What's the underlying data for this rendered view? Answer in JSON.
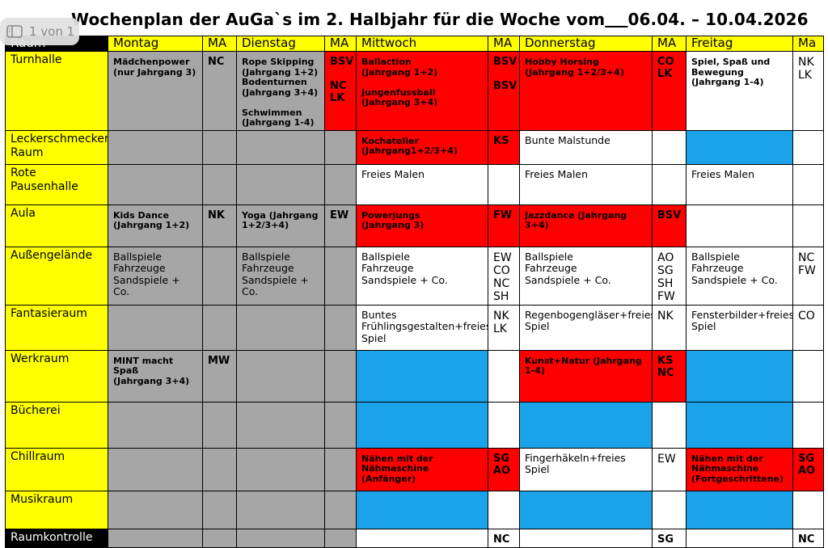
{
  "page_indicator": "1 von 1",
  "title": "Wochenplan der AuGa`s im 2. Halbjahr für die Woche vom",
  "date_range": "06.04. – 10.04.2026",
  "table": {
    "header": [
      "Raum",
      "Montag",
      "MA",
      "Dienstag",
      "MA",
      "Mittwoch",
      "MA",
      "Donnerstag",
      "MA",
      "Freitag",
      "Ma"
    ],
    "rows": [
      {
        "room": "Turnhalle",
        "cells": [
          {
            "text": "Mädchenpower\n(nur Jahrgang 3)",
            "bg": "#a6a6a6",
            "bold": true
          },
          {
            "text": "NC",
            "bg": "#a6a6a6",
            "bold": true
          },
          {
            "text": "Rope Skipping\n(Jahrgang 1+2)\nBodenturnen\n(Jahrgang 3+4)\n\nSchwimmen\n(Jahrgang 1-4)",
            "bg": "#a6a6a6",
            "bold": true
          },
          {
            "text": "BSV\n\nNC\nLK",
            "bg": "#ff0000",
            "bold": true
          },
          {
            "text": "Ballaction\n(Jahrgang 1+2)\n\nJungenfussball\n(Jahrgang 3+4)",
            "bg": "#ff0000",
            "bold": true
          },
          {
            "text": "BSV\n\nBSV",
            "bg": "#ff0000",
            "bold": true
          },
          {
            "text": "Hobby Horsing\n(Jahrgang 1+2/3+4)",
            "bg": "#ff0000",
            "bold": true
          },
          {
            "text": "CO\nLK",
            "bg": "#ff0000",
            "bold": true
          },
          {
            "text": "Spiel, Spaß und\nBewegung\n(Jahrgang 1-4)",
            "bg": "#ffffff",
            "bold": true
          },
          {
            "text": "NK\nLK",
            "bg": "#ffffff",
            "bold": false
          }
        ]
      },
      {
        "room": "Leckerschmecker\nRaum",
        "cells": [
          {
            "bg": "#a6a6a6"
          },
          {
            "bg": "#a6a6a6"
          },
          {
            "bg": "#a6a6a6"
          },
          {
            "bg": "#a6a6a6"
          },
          {
            "text": "Kochatelier\n(Jahrgang1+2/3+4)",
            "bg": "#ff0000",
            "bold": true
          },
          {
            "text": "KS",
            "bg": "#ff0000",
            "bold": true
          },
          {
            "text": "Bunte Malstunde",
            "bg": "#ffffff",
            "bold": false
          },
          {
            "bg": "#ffffff"
          },
          {
            "bg": "#1aa3e8"
          },
          {
            "bg": "#ffffff"
          }
        ]
      },
      {
        "room": "Rote Pausenhalle",
        "cells": [
          {
            "bg": "#a6a6a6"
          },
          {
            "bg": "#a6a6a6"
          },
          {
            "bg": "#a6a6a6"
          },
          {
            "bg": "#a6a6a6"
          },
          {
            "text": "Freies Malen",
            "bg": "#ffffff",
            "bold": false
          },
          {
            "bg": "#ffffff"
          },
          {
            "text": "Freies Malen",
            "bg": "#ffffff",
            "bold": false
          },
          {
            "bg": "#ffffff"
          },
          {
            "text": "Freies Malen",
            "bg": "#ffffff",
            "bold": false
          },
          {
            "bg": "#ffffff"
          }
        ]
      },
      {
        "room": "Aula",
        "cells": [
          {
            "text": "Kids Dance\n(Jahrgang 1+2)",
            "bg": "#a6a6a6",
            "bold": true
          },
          {
            "text": "NK",
            "bg": "#a6a6a6",
            "bold": true
          },
          {
            "text": "Yoga (Jahrgang\n1+2/3+4)",
            "bg": "#a6a6a6",
            "bold": true
          },
          {
            "text": "EW",
            "bg": "#a6a6a6",
            "bold": true
          },
          {
            "text": "Powerjungs\n(Jahrgang 3)",
            "bg": "#ff0000",
            "bold": true
          },
          {
            "text": "FW",
            "bg": "#ff0000",
            "bold": true
          },
          {
            "text": "Jazzdance (Jahrgang\n3+4)",
            "bg": "#ff0000",
            "bold": true
          },
          {
            "text": "BSV",
            "bg": "#ff0000",
            "bold": true
          },
          {
            "bg": "#ffffff"
          },
          {
            "bg": "#ffffff"
          }
        ]
      },
      {
        "room": "Außengelände",
        "cells": [
          {
            "text": "Ballspiele\nFahrzeuge\nSandspiele + Co.",
            "bg": "#a6a6a6",
            "bold": false
          },
          {
            "bg": "#a6a6a6"
          },
          {
            "text": "Ballspiele\nFahrzeuge\nSandspiele +\nCo.",
            "bg": "#a6a6a6",
            "bold": false
          },
          {
            "bg": "#a6a6a6"
          },
          {
            "text": "Ballspiele\nFahrzeuge\nSandspiele + Co.",
            "bg": "#ffffff",
            "bold": false
          },
          {
            "text": "EW\nCO\nNC\nSH",
            "bg": "#ffffff",
            "bold": false
          },
          {
            "text": "Ballspiele\nFahrzeuge\nSandspiele + Co.",
            "bg": "#ffffff",
            "bold": false
          },
          {
            "text": "AO\nSG\nSH\nFW",
            "bg": "#ffffff",
            "bold": false
          },
          {
            "text": "Ballspiele\nFahrzeuge\nSandspiele + Co.",
            "bg": "#ffffff",
            "bold": false
          },
          {
            "text": "NC\nFW",
            "bg": "#ffffff",
            "bold": false
          }
        ]
      },
      {
        "room": "Fantasieraum",
        "cells": [
          {
            "bg": "#a6a6a6"
          },
          {
            "bg": "#a6a6a6"
          },
          {
            "bg": "#a6a6a6"
          },
          {
            "bg": "#a6a6a6"
          },
          {
            "text": "Buntes\nFrühlingsgestalten+freies\nSpiel",
            "bg": "#ffffff",
            "bold": false
          },
          {
            "text": "NK\nLK",
            "bg": "#ffffff",
            "bold": false
          },
          {
            "text": "Regenbogengläser+freies\nSpiel",
            "bg": "#ffffff",
            "bold": false
          },
          {
            "text": "NK",
            "bg": "#ffffff",
            "bold": false
          },
          {
            "text": "Fensterbilder+freies\nSpiel",
            "bg": "#ffffff",
            "bold": false
          },
          {
            "text": "CO",
            "bg": "#ffffff",
            "bold": false
          }
        ]
      },
      {
        "room": "Werkraum",
        "cells": [
          {
            "text": "MINT macht\nSpaß\n(Jahrgang 3+4)",
            "bg": "#a6a6a6",
            "bold": true
          },
          {
            "text": "MW",
            "bg": "#a6a6a6",
            "bold": true
          },
          {
            "bg": "#a6a6a6"
          },
          {
            "bg": "#a6a6a6"
          },
          {
            "bg": "#1aa3e8"
          },
          {
            "bg": "#ffffff"
          },
          {
            "text": "Kunst+Natur (Jahrgang\n1-4)",
            "bg": "#ff0000",
            "bold": true
          },
          {
            "text": "KS\nNC",
            "bg": "#ff0000",
            "bold": true
          },
          {
            "bg": "#1aa3e8"
          },
          {
            "bg": "#ffffff"
          }
        ]
      },
      {
        "room": "Bücherei",
        "cells": [
          {
            "bg": "#a6a6a6"
          },
          {
            "bg": "#a6a6a6"
          },
          {
            "bg": "#a6a6a6"
          },
          {
            "bg": "#a6a6a6"
          },
          {
            "bg": "#1aa3e8"
          },
          {
            "bg": "#ffffff"
          },
          {
            "bg": "#1aa3e8"
          },
          {
            "bg": "#ffffff"
          },
          {
            "bg": "#1aa3e8"
          },
          {
            "bg": "#ffffff"
          }
        ]
      },
      {
        "room": "Chillraum",
        "cells": [
          {
            "bg": "#a6a6a6"
          },
          {
            "bg": "#a6a6a6"
          },
          {
            "bg": "#a6a6a6"
          },
          {
            "bg": "#a6a6a6"
          },
          {
            "text": "Nähen mit der\nNähmaschine\n(Anfänger)",
            "bg": "#ff0000",
            "bold": true
          },
          {
            "text": "SG\nAO",
            "bg": "#ff0000",
            "bold": true
          },
          {
            "text": "Fingerhäkeln+freies Spiel",
            "bg": "#ffffff",
            "bold": false
          },
          {
            "text": "EW",
            "bg": "#ffffff",
            "bold": false
          },
          {
            "text": "Nähen mit der\nNähmaschine\n(Fortgeschrittene)",
            "bg": "#ff0000",
            "bold": true
          },
          {
            "text": "SG\nAO",
            "bg": "#ff0000",
            "bold": true
          }
        ]
      },
      {
        "room": "Musikraum",
        "cells": [
          {
            "bg": "#a6a6a6"
          },
          {
            "bg": "#a6a6a6"
          },
          {
            "bg": "#a6a6a6"
          },
          {
            "bg": "#a6a6a6"
          },
          {
            "bg": "#1aa3e8"
          },
          {
            "bg": "#ffffff"
          },
          {
            "bg": "#1aa3e8"
          },
          {
            "bg": "#ffffff"
          },
          {
            "bg": "#1aa3e8"
          },
          {
            "bg": "#ffffff"
          }
        ]
      },
      {
        "room": "Raumkontrolle",
        "room_bg": "#000000",
        "room_color": "#ffffff",
        "cells": [
          {
            "bg": "#a6a6a6"
          },
          {
            "bg": "#a6a6a6"
          },
          {
            "bg": "#a6a6a6"
          },
          {
            "bg": "#a6a6a6"
          },
          {
            "bg": "#ffffff"
          },
          {
            "text": "NC",
            "bg": "#ffffff",
            "bold": true
          },
          {
            "bg": "#ffffff"
          },
          {
            "text": "SG",
            "bg": "#ffffff",
            "bold": true
          },
          {
            "bg": "#ffffff"
          },
          {
            "text": "NC",
            "bg": "#ffffff",
            "bold": true
          }
        ]
      }
    ]
  }
}
